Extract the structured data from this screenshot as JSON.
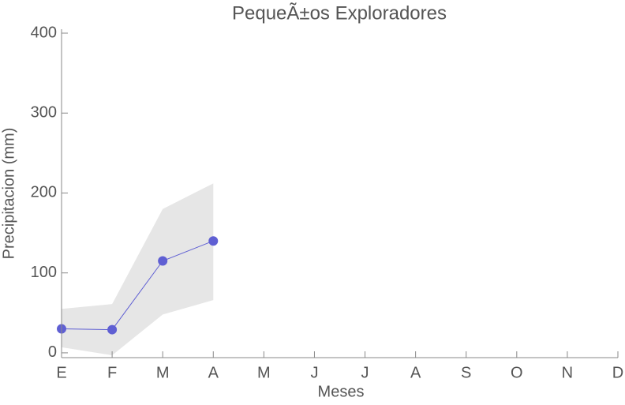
{
  "chart_data": {
    "type": "line",
    "title": "PequeÃ±os Exploradores",
    "xlabel": "Meses",
    "ylabel": "Precipitacion (mm)",
    "categories": [
      "E",
      "F",
      "M",
      "A",
      "M",
      "J",
      "J",
      "A",
      "S",
      "O",
      "N",
      "D"
    ],
    "values": [
      30,
      29,
      115,
      140,
      null,
      null,
      null,
      null,
      null,
      null,
      null,
      null
    ],
    "upper": [
      55,
      61,
      180,
      212,
      null,
      null,
      null,
      null,
      null,
      null,
      null,
      null
    ],
    "lower": [
      7,
      -3,
      48,
      66,
      null,
      null,
      null,
      null,
      null,
      null,
      null,
      null
    ],
    "color": "#5f5fd3",
    "band_color": "#e6e6e6",
    "ylim": [
      -6,
      400
    ],
    "yticks": [
      0,
      100,
      200,
      300,
      400
    ],
    "grid": false
  }
}
